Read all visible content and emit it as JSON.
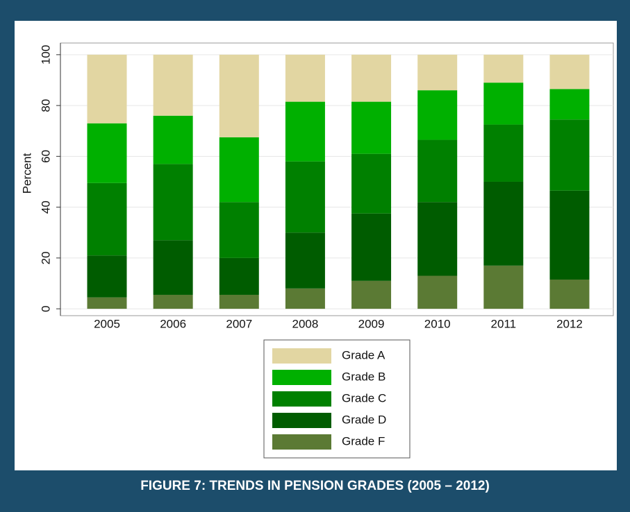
{
  "caption": "FIGURE 7: TRENDS IN PENSION GRADES (2005 – 2012)",
  "chart_data": {
    "type": "stacked-bar",
    "y_label": "Percent",
    "categories": [
      "2005",
      "2006",
      "2007",
      "2008",
      "2009",
      "2010",
      "2011",
      "2012"
    ],
    "series": [
      {
        "name": "Grade A",
        "color": "#e2d6a2",
        "values": [
          27,
          24,
          32.5,
          18.5,
          18.5,
          14,
          11,
          13.5
        ]
      },
      {
        "name": "Grade B",
        "color": "#00b000",
        "values": [
          23.5,
          19,
          25.5,
          23.5,
          20.5,
          19.5,
          16.5,
          12
        ]
      },
      {
        "name": "Grade C",
        "color": "#008000",
        "values": [
          28.5,
          30,
          22,
          28,
          23.5,
          24.5,
          22.5,
          28
        ]
      },
      {
        "name": "Grade D",
        "color": "#005c00",
        "values": [
          16.5,
          21.5,
          14.5,
          22,
          26.5,
          29,
          33,
          35
        ]
      },
      {
        "name": "Grade F",
        "color": "#5b7a34",
        "values": [
          4.5,
          5.5,
          5.5,
          8,
          11,
          13,
          17,
          11.5
        ]
      }
    ],
    "ylim": [
      -2.7,
      104.6
    ],
    "yticks": [
      0,
      20,
      40,
      60,
      80,
      100
    ],
    "grid": true
  }
}
